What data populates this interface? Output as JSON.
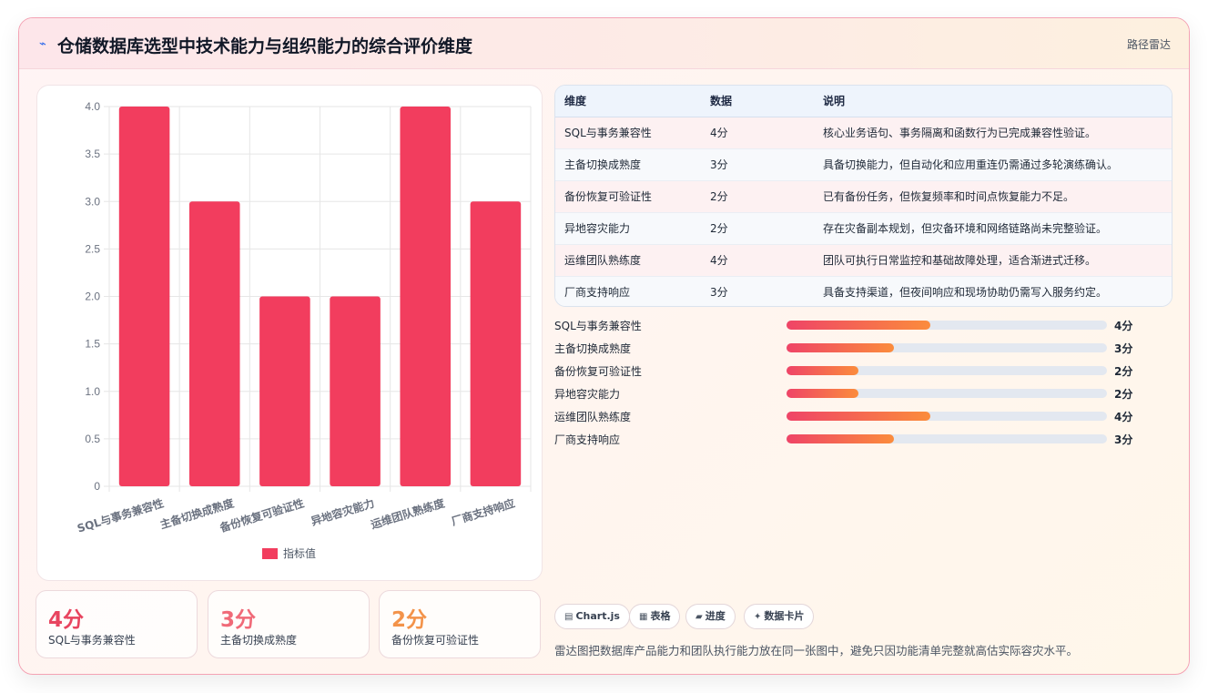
{
  "header": {
    "icon": "chart-line-icon",
    "icon_glyph": "⌁",
    "title": "仓储数据库选型中技术能力与组织能力的综合评价维度",
    "tag": "路径雷达"
  },
  "chart_data": {
    "type": "bar",
    "categories": [
      "SQL与事务兼容性",
      "主备切换成熟度",
      "备份恢复可验证性",
      "异地容灾能力",
      "运维团队熟练度",
      "厂商支持响应"
    ],
    "series": [
      {
        "name": "指标值",
        "values": [
          4,
          3,
          2,
          2,
          4,
          3
        ],
        "color": "#f23d5e"
      }
    ],
    "ylim": [
      0,
      4
    ],
    "yticks": [
      "4.0",
      "3.5",
      "3.0",
      "2.5",
      "2.0",
      "1.5",
      "1.0",
      "0.5",
      "0"
    ],
    "legend_position": "bottom",
    "grid": true
  },
  "stats": [
    {
      "value": "4分",
      "label": "SQL与事务兼容性",
      "color": "#e8445f"
    },
    {
      "value": "3分",
      "label": "主备切换成熟度",
      "color": "#f06a78"
    },
    {
      "value": "2分",
      "label": "备份恢复可验证性",
      "color": "#f3934a"
    }
  ],
  "table": {
    "headers": [
      "维度",
      "数据",
      "说明"
    ],
    "rows": [
      [
        "SQL与事务兼容性",
        "4分",
        "核心业务语句、事务隔离和函数行为已完成兼容性验证。"
      ],
      [
        "主备切换成熟度",
        "3分",
        "具备切换能力，但自动化和应用重连仍需通过多轮演练确认。"
      ],
      [
        "备份恢复可验证性",
        "2分",
        "已有备份任务，但恢复频率和时间点恢复能力不足。"
      ],
      [
        "异地容灾能力",
        "2分",
        "存在灾备副本规划，但灾备环境和网络链路尚未完整验证。"
      ],
      [
        "运维团队熟练度",
        "4分",
        "团队可执行日常监控和基础故障处理，适合渐进式迁移。"
      ],
      [
        "厂商支持响应",
        "3分",
        "具备支持渠道，但夜间响应和现场协助仍需写入服务约定。"
      ]
    ]
  },
  "progress": [
    {
      "label": "SQL与事务兼容性",
      "value": "4分",
      "fraction": 0.45
    },
    {
      "label": "主备切换成熟度",
      "value": "3分",
      "fraction": 0.336
    },
    {
      "label": "备份恢复可验证性",
      "value": "2分",
      "fraction": 0.225
    },
    {
      "label": "异地容灾能力",
      "value": "2分",
      "fraction": 0.225
    },
    {
      "label": "运维团队熟练度",
      "value": "4分",
      "fraction": 0.45
    },
    {
      "label": "厂商支持响应",
      "value": "3分",
      "fraction": 0.336
    }
  ],
  "pills": [
    {
      "icon": "chart-icon",
      "glyph": "▤",
      "label": "Chart.js"
    },
    {
      "icon": "table-icon",
      "glyph": "▦",
      "label": "表格"
    },
    {
      "icon": "progress-icon",
      "glyph": "▰",
      "label": "进度"
    },
    {
      "icon": "sparkle-icon",
      "glyph": "✦",
      "label": "数据卡片"
    }
  ],
  "footnote": "雷达图把数据库产品能力和团队执行能力放在同一张图中，避免只因功能清单完整就高估实际容灾水平。"
}
